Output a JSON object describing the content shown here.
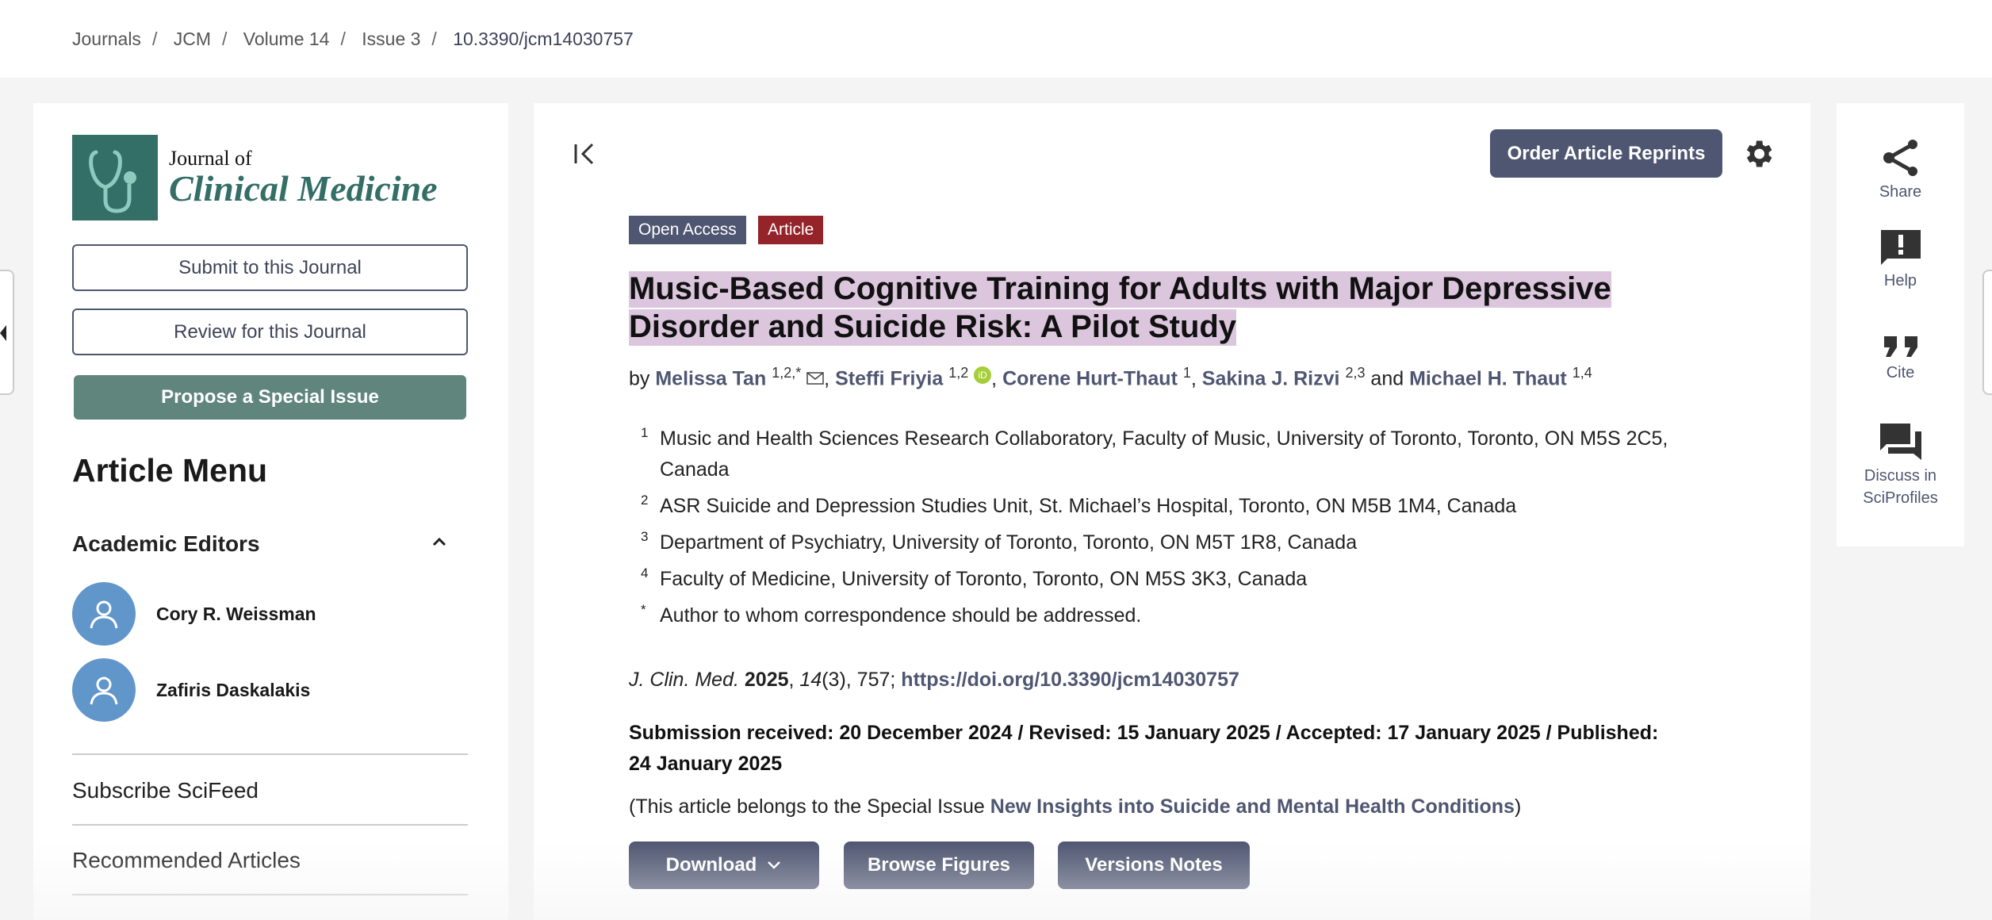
{
  "breadcrumb": [
    "Journals",
    "JCM",
    "Volume 14",
    "Issue 3",
    "10.3390/jcm14030757"
  ],
  "breadcrumb_separator": "/",
  "sidebar": {
    "logo": {
      "line1": "Journal of",
      "line2": "Clinical Medicine"
    },
    "submit_label": "Submit to this Journal",
    "review_label": "Review for this Journal",
    "propose_label": "Propose a Special Issue",
    "menu_title": "Article Menu",
    "editors_title": "Academic Editors",
    "editors": [
      "Cory R. Weissman",
      "Zafiris Daskalakis"
    ],
    "links": [
      "Subscribe SciFeed",
      "Recommended Articles"
    ]
  },
  "toolbar": {
    "reprints_label": "Order Article Reprints"
  },
  "badges": {
    "open_access": "Open Access",
    "type": "Article"
  },
  "article": {
    "title": "Music-Based Cognitive Training for Adults with Major Depressive Disorder and Suicide Risk: A Pilot Study",
    "by": "by",
    "and": "and",
    "authors": [
      {
        "name": "Melissa Tan",
        "aff": "1,2,*"
      },
      {
        "name": "Steffi Friyia",
        "aff": "1,2"
      },
      {
        "name": "Corene Hurt-Thaut",
        "aff": "1"
      },
      {
        "name": "Sakina J. Rizvi",
        "aff": "2,3"
      },
      {
        "name": "Michael H. Thaut",
        "aff": "1,4"
      }
    ],
    "affiliations": [
      {
        "num": "1",
        "text": "Music and Health Sciences Research Collaboratory, Faculty of Music, University of Toronto, Toronto, ON M5S 2C5, Canada"
      },
      {
        "num": "2",
        "text": "ASR Suicide and Depression Studies Unit, St. Michael’s Hospital, Toronto, ON M5B 1M4, Canada"
      },
      {
        "num": "3",
        "text": "Department of Psychiatry, University of Toronto, Toronto, ON M5T 1R8, Canada"
      },
      {
        "num": "4",
        "text": "Faculty of Medicine, University of Toronto, Toronto, ON M5S 3K3, Canada"
      },
      {
        "num": "*",
        "text": "Author to whom correspondence should be addressed."
      }
    ],
    "citation": {
      "journal": "J. Clin. Med.",
      "year": "2025",
      "volume": "14",
      "issue_pages": "(3), 757;",
      "doi": "https://doi.org/10.3390/jcm14030757"
    },
    "dates": "Submission received: 20 December 2024 / Revised: 15 January 2025 / Accepted: 17 January 2025 / Published: 24 January 2025",
    "special_prefix": "(This article belongs to the Special Issue ",
    "special_name": "New Insights into Suicide and Mental Health Conditions",
    "special_suffix": ")"
  },
  "actions": {
    "download": "Download",
    "figures": "Browse Figures",
    "versions": "Versions Notes"
  },
  "right_rail": {
    "share": "Share",
    "help": "Help",
    "cite": "Cite",
    "discuss1": "Discuss in",
    "discuss2": "SciProfiles"
  },
  "colors": {
    "primary": "#4f5671",
    "green": "#5f857d",
    "teal": "#336e67",
    "article_red": "#94232a",
    "avatar": "#6196cb",
    "highlight": "#dcc6de"
  }
}
